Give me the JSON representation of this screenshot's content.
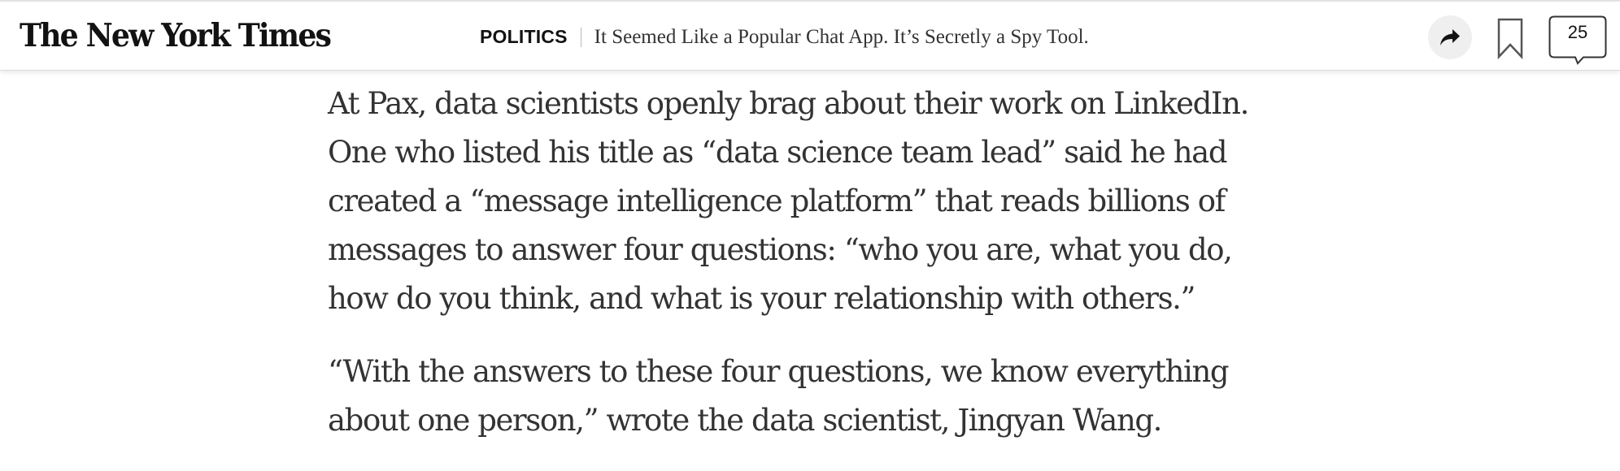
{
  "header": {
    "masthead": "The New York Times",
    "section": "POLITICS",
    "headline": "It Seemed Like a Popular Chat App. It’s Secretly a Spy Tool.",
    "share_icon": "share-arrow-icon",
    "bookmark_icon": "bookmark-icon",
    "comments_icon": "comment-bubble-icon",
    "comment_count": "25"
  },
  "article": {
    "paragraphs": [
      {
        "lines": [
          "At Pax, data scientists openly brag about their work on LinkedIn.",
          "One who listed his title as “data science team lead” said he had",
          "created a “message intelligence platform” that reads billions of",
          "messages to answer four questions: “who you are, what you do,",
          "how do you think, and what is your relationship with others.”"
        ]
      },
      {
        "lines": [
          "“With the answers to these four questions, we know everything",
          "about one person,” wrote the data scientist, Jingyan Wang."
        ]
      }
    ]
  },
  "colors": {
    "text": "#333333",
    "masthead": "#121212",
    "share_button_bg": "#efefef",
    "header_border": "#dcdcdc"
  }
}
